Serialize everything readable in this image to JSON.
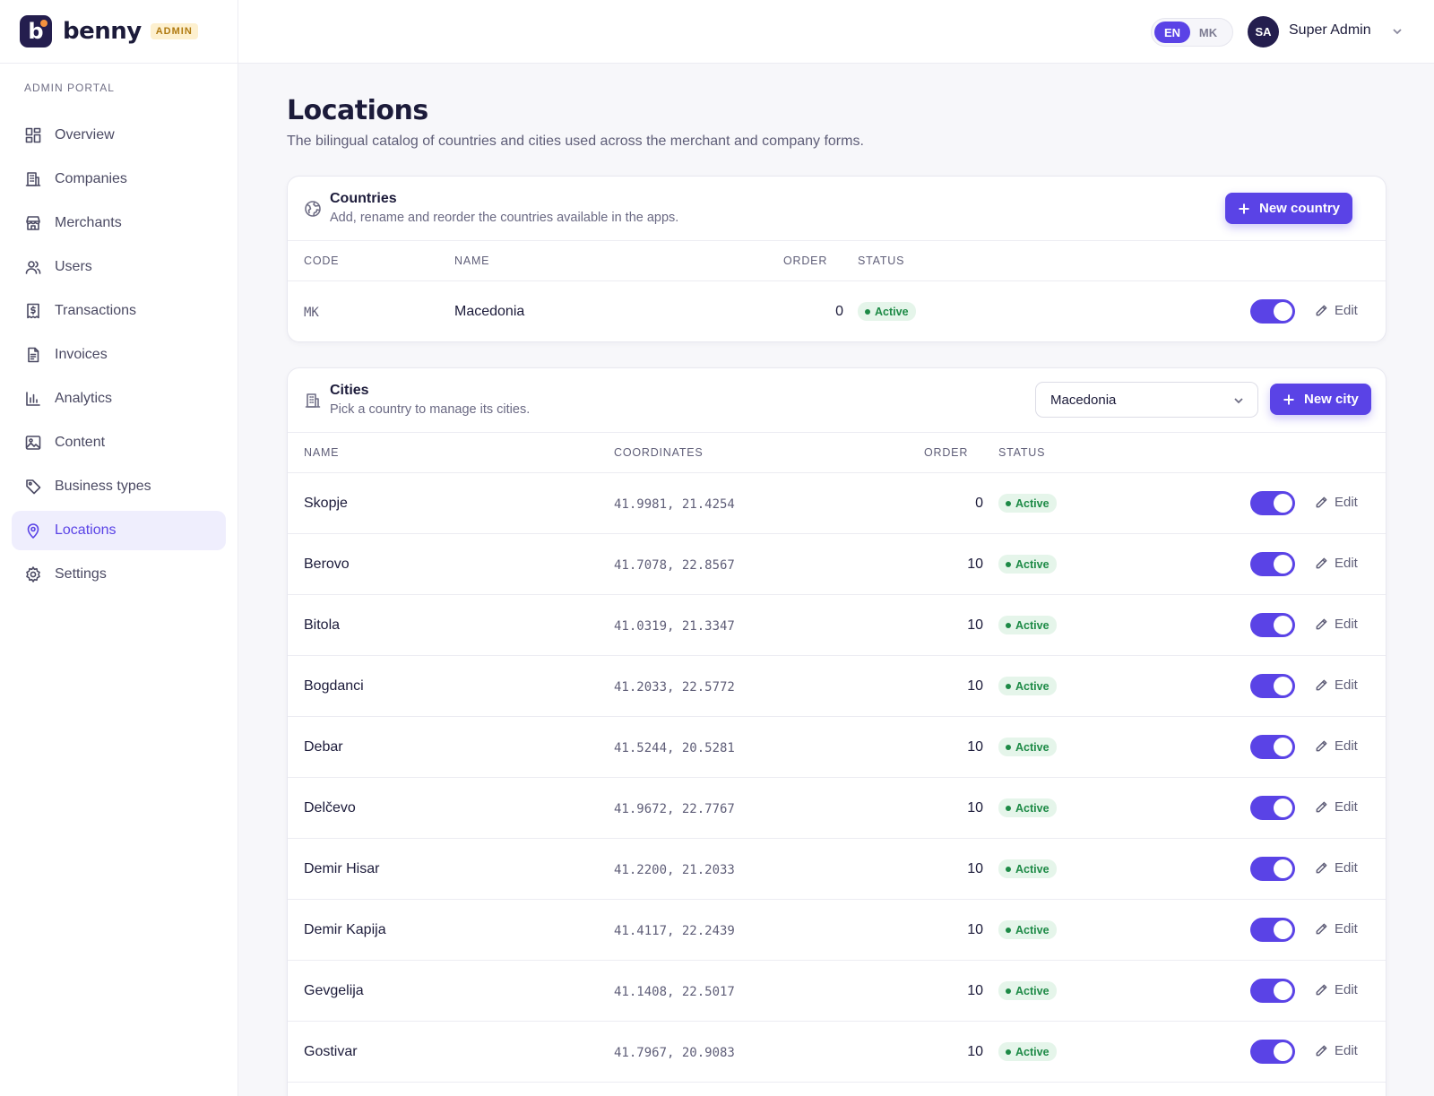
{
  "brand": {
    "logo_letter": "b",
    "name": "benny",
    "badge": "ADMIN",
    "accent": "#5a43e6",
    "logo_dot_color": "#f5923e"
  },
  "sidebar": {
    "section_label": "ADMIN PORTAL",
    "items": [
      {
        "label": "Overview",
        "icon": "grid-icon"
      },
      {
        "label": "Companies",
        "icon": "building-icon"
      },
      {
        "label": "Merchants",
        "icon": "store-icon"
      },
      {
        "label": "Users",
        "icon": "users-icon"
      },
      {
        "label": "Transactions",
        "icon": "receipt-dollar-icon"
      },
      {
        "label": "Invoices",
        "icon": "document-icon"
      },
      {
        "label": "Analytics",
        "icon": "bar-chart-icon"
      },
      {
        "label": "Content",
        "icon": "image-icon"
      },
      {
        "label": "Business types",
        "icon": "tag-icon"
      },
      {
        "label": "Locations",
        "icon": "map-pin-icon",
        "active": true
      },
      {
        "label": "Settings",
        "icon": "gear-icon"
      }
    ]
  },
  "topbar": {
    "languages": [
      "EN",
      "MK"
    ],
    "active_language": "EN",
    "user_initials": "SA",
    "user_name": "Super Admin"
  },
  "page": {
    "title": "Locations",
    "subtitle": "The bilingual catalog of countries and cities used across the merchant and company forms."
  },
  "countries": {
    "title": "Countries",
    "subtitle": "Add, rename and reorder the countries available in the apps.",
    "new_button": "New country",
    "columns": {
      "code": "CODE",
      "name": "NAME",
      "order": "ORDER",
      "status": "STATUS"
    },
    "rows": [
      {
        "code": "MK",
        "name": "Macedonia",
        "order": "0",
        "status": "Active",
        "enabled": true
      }
    ],
    "edit_label": "Edit"
  },
  "cities": {
    "title": "Cities",
    "subtitle": "Pick a country to manage its cities.",
    "country_select": "Macedonia",
    "new_button": "New city",
    "columns": {
      "name": "NAME",
      "coordinates": "COORDINATES",
      "order": "ORDER",
      "status": "STATUS"
    },
    "rows": [
      {
        "name": "Skopje",
        "coordinates": "41.9981, 21.4254",
        "order": "0",
        "status": "Active",
        "enabled": true
      },
      {
        "name": "Berovo",
        "coordinates": "41.7078, 22.8567",
        "order": "10",
        "status": "Active",
        "enabled": true
      },
      {
        "name": "Bitola",
        "coordinates": "41.0319, 21.3347",
        "order": "10",
        "status": "Active",
        "enabled": true
      },
      {
        "name": "Bogdanci",
        "coordinates": "41.2033, 22.5772",
        "order": "10",
        "status": "Active",
        "enabled": true
      },
      {
        "name": "Debar",
        "coordinates": "41.5244, 20.5281",
        "order": "10",
        "status": "Active",
        "enabled": true
      },
      {
        "name": "Delčevo",
        "coordinates": "41.9672, 22.7767",
        "order": "10",
        "status": "Active",
        "enabled": true
      },
      {
        "name": "Demir Hisar",
        "coordinates": "41.2200, 21.2033",
        "order": "10",
        "status": "Active",
        "enabled": true
      },
      {
        "name": "Demir Kapija",
        "coordinates": "41.4117, 22.2439",
        "order": "10",
        "status": "Active",
        "enabled": true
      },
      {
        "name": "Gevgelija",
        "coordinates": "41.1408, 22.5017",
        "order": "10",
        "status": "Active",
        "enabled": true
      },
      {
        "name": "Gostivar",
        "coordinates": "41.7967, 20.9083",
        "order": "10",
        "status": "Active",
        "enabled": true
      }
    ],
    "edit_label": "Edit"
  }
}
